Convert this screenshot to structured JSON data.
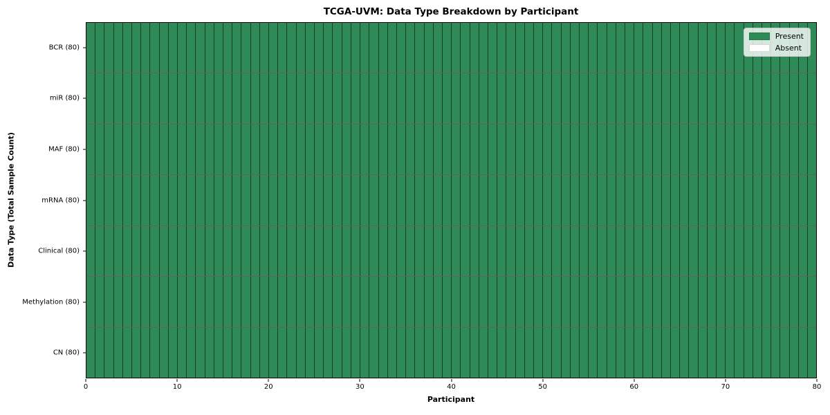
{
  "chart_data": {
    "type": "heatmap",
    "title": "TCGA-UVM: Data Type Breakdown by Participant",
    "xlabel": "Participant",
    "ylabel": "Data Type (Total Sample Count)",
    "n_participants": 80,
    "xlim": [
      0,
      80
    ],
    "x_ticks": [
      0,
      10,
      20,
      30,
      40,
      50,
      60,
      70,
      80
    ],
    "rows": [
      {
        "label": "BCR (80)",
        "data_type": "BCR",
        "total_sample_count": 80,
        "present_count": 80,
        "absent_count": 0
      },
      {
        "label": "miR (80)",
        "data_type": "miR",
        "total_sample_count": 80,
        "present_count": 80,
        "absent_count": 0
      },
      {
        "label": "MAF (80)",
        "data_type": "MAF",
        "total_sample_count": 80,
        "present_count": 80,
        "absent_count": 0
      },
      {
        "label": "mRNA (80)",
        "data_type": "mRNA",
        "total_sample_count": 80,
        "present_count": 80,
        "absent_count": 0
      },
      {
        "label": "Clinical (80)",
        "data_type": "Clinical",
        "total_sample_count": 80,
        "present_count": 80,
        "absent_count": 0
      },
      {
        "label": "Methylation (80)",
        "data_type": "Methylation",
        "total_sample_count": 80,
        "present_count": 80,
        "absent_count": 0
      },
      {
        "label": "CN (80)",
        "data_type": "CN",
        "total_sample_count": 80,
        "present_count": 80,
        "absent_count": 0
      }
    ],
    "legend": [
      {
        "label": "Present",
        "color": "#2e8b57"
      },
      {
        "label": "Absent",
        "color": "#ffffff"
      }
    ],
    "colors": {
      "present": "#2e8b57",
      "absent": "#ffffff",
      "frame": "#000000",
      "background": "#ffffff"
    },
    "layout_hints": {
      "legend_position": "upper right",
      "grid": "cell borders only"
    }
  }
}
